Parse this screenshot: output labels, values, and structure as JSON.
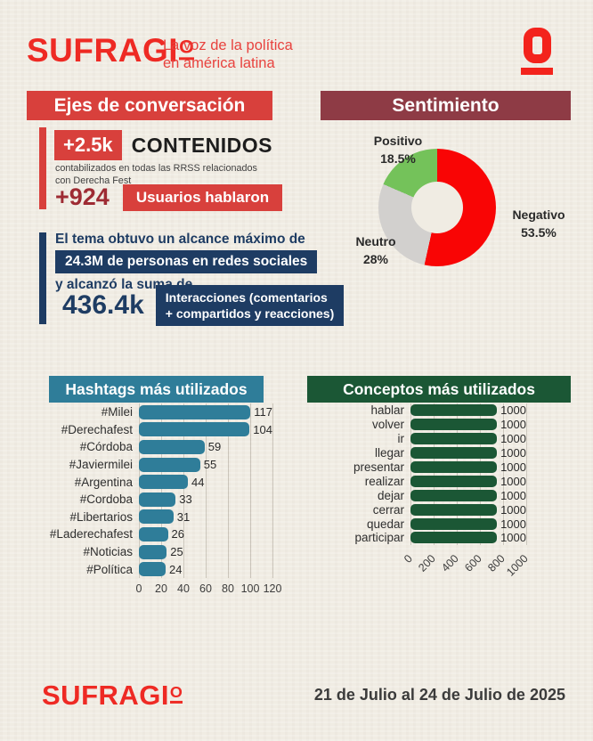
{
  "header": {
    "logo_main": "SUFRAGI",
    "logo_o": "O",
    "tagline_line1": "La voz de la política",
    "tagline_line2": "en américa latina"
  },
  "sections": {
    "ejes": {
      "title": "Ejes de conversación",
      "contenidos_value": "+2.5k",
      "contenidos_label": "CONTENIDOS",
      "contenidos_sub_line1": "contabilizados en todas las RRSS relacionados",
      "contenidos_sub_line2": "con Derecha Fest",
      "usuarios_value": "+924",
      "usuarios_label": "Usuarios hablaron"
    },
    "sentimiento": {
      "title": "Sentimiento"
    },
    "alcance": {
      "line1": "El tema obtuvo un alcance máximo de",
      "reach_value": "24.3M",
      "reach_text": " de personas en redes sociales",
      "line2": "y alcanzó la suma de",
      "interactions_value": "436.4k",
      "interactions_label_line1": "Interacciones (comentarios",
      "interactions_label_line2": "+ compartidos y reacciones)"
    },
    "hashtags": {
      "title": "Hashtags más utilizados"
    },
    "conceptos": {
      "title": "Conceptos más utilizados"
    }
  },
  "footer": {
    "logo_main": "SUFRAGI",
    "logo_o": "O",
    "date_range": "21 de Julio al 24 de Julio de 2025"
  },
  "colors": {
    "paper": "#f0ece3",
    "brand_red": "#ee2a24",
    "banner_red": "#d8403c",
    "maroon_banner": "#8e3b45",
    "maroon_text": "#9e2b33",
    "navy": "#1e3c63",
    "teal": "#2f7d99",
    "dark_green": "#1b5735"
  },
  "chart_data": [
    {
      "type": "pie",
      "donut": true,
      "title": "Sentimiento",
      "start_angle_deg": 0,
      "direction": "clockwise",
      "slices": [
        {
          "label": "Negativo",
          "value": 53.5,
          "pct": "53.5%",
          "color": "#f90505"
        },
        {
          "label": "Neutro",
          "value": 28,
          "pct": "28%",
          "color": "#d2d0ce"
        },
        {
          "label": "Positivo",
          "value": 18.5,
          "pct": "18.5%",
          "color": "#74c25a"
        }
      ]
    },
    {
      "type": "bar",
      "orientation": "horizontal",
      "title": "Hashtags más utilizados",
      "categories": [
        "#Milei",
        "#Derechafest",
        "#Córdoba",
        "#Javiermilei",
        "#Argentina",
        "#Cordoba",
        "#Libertarios",
        "#Laderechafest",
        "#Noticias",
        "#Política"
      ],
      "values": [
        117,
        104,
        59,
        55,
        44,
        33,
        31,
        26,
        25,
        24
      ],
      "xlim": [
        0,
        120
      ],
      "xticks": [
        0,
        20,
        40,
        60,
        80,
        100,
        120
      ],
      "bar_color": "#2f7d99",
      "grid": true,
      "tick_rotation_deg": 0
    },
    {
      "type": "bar",
      "orientation": "horizontal",
      "title": "Conceptos más utilizados",
      "categories": [
        "hablar",
        "volver",
        "ir",
        "llegar",
        "presentar",
        "realizar",
        "dejar",
        "cerrar",
        "quedar",
        "participar"
      ],
      "values": [
        1000,
        1000,
        1000,
        1000,
        1000,
        1000,
        1000,
        1000,
        1000,
        1000
      ],
      "xlim": [
        0,
        1000
      ],
      "xticks": [
        0,
        200,
        400,
        600,
        800,
        1000
      ],
      "bar_color": "#1b5735",
      "grid": true,
      "tick_rotation_deg": 45
    }
  ]
}
